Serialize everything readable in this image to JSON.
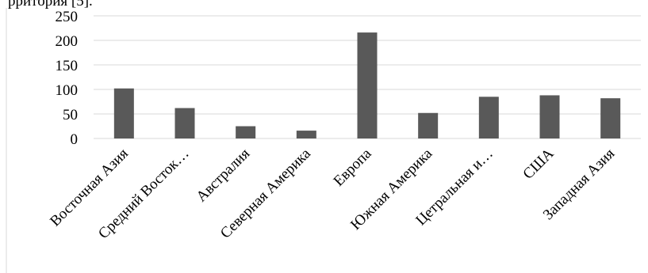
{
  "top_text": "рритория [5].",
  "chart_data": {
    "type": "bar",
    "categories": [
      "Восточная Азия",
      "Средний Восток…",
      "Австралия",
      "Северная Америка",
      "Европа",
      "Южная Америка",
      "Цетральная и…",
      "США",
      "Западная Азия"
    ],
    "values": [
      102,
      62,
      25,
      16,
      216,
      52,
      85,
      88,
      82
    ],
    "y_ticks": [
      "0",
      "50",
      "100",
      "150",
      "200",
      "250"
    ],
    "ylim": [
      0,
      250
    ],
    "grid": true,
    "bar_color": "#595959",
    "grid_color": "#d9d9d9"
  }
}
